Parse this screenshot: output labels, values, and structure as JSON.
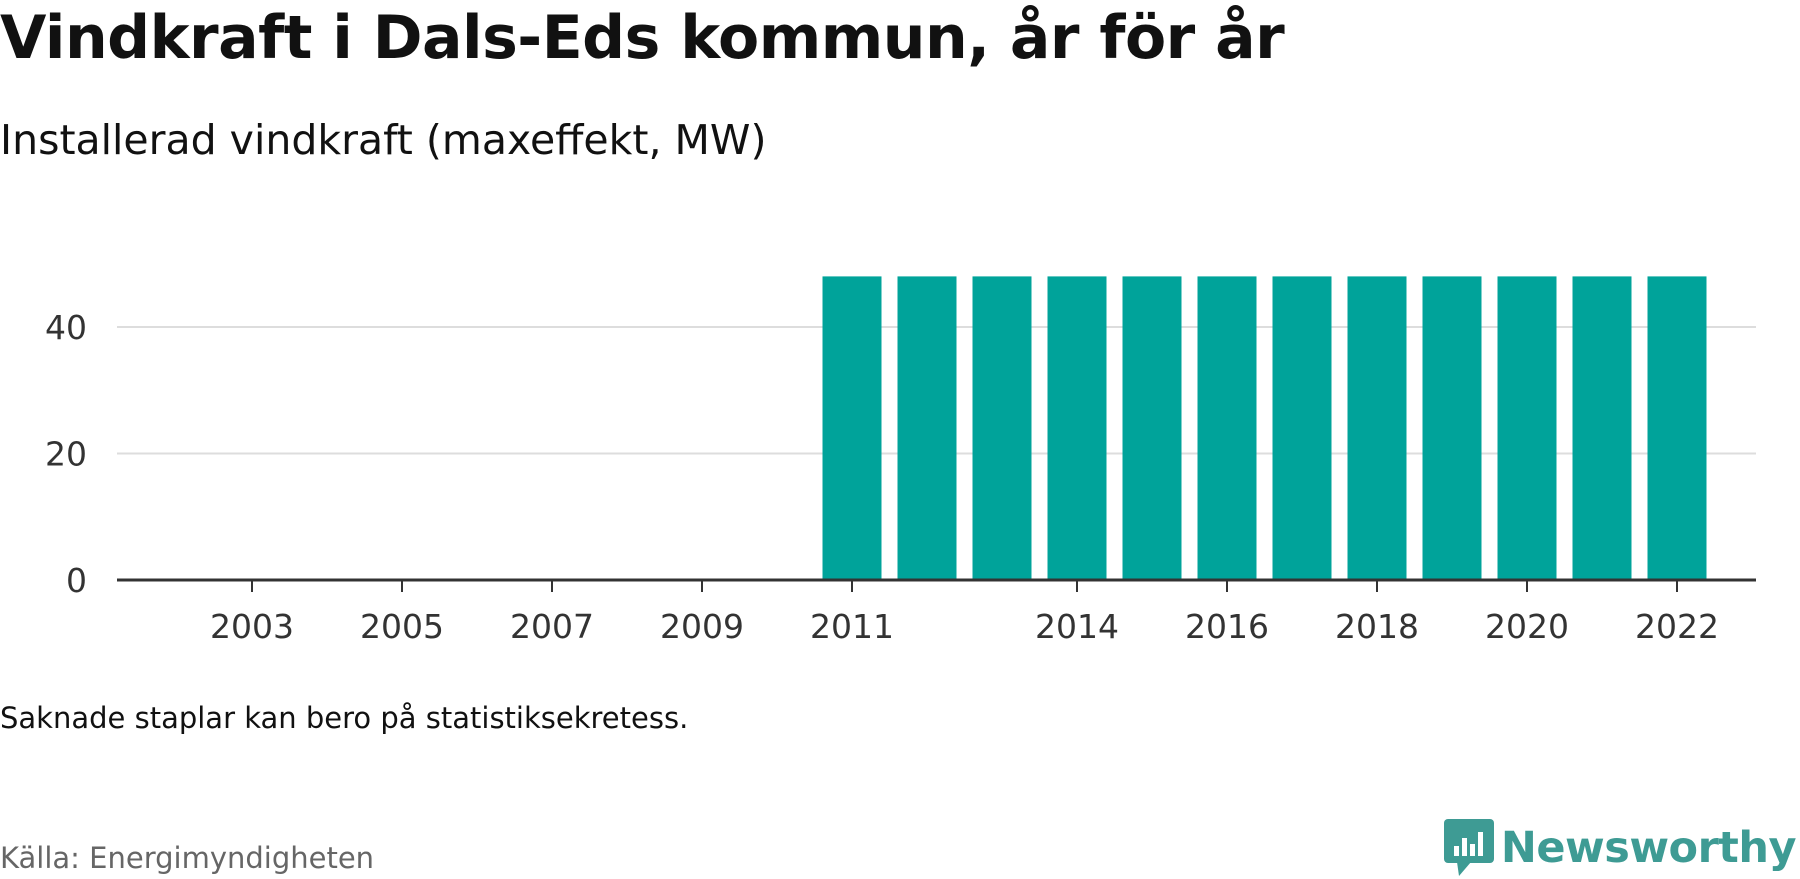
{
  "title": "Vindkraft i Dals-Eds kommun, år för år",
  "subtitle": "Installerad vindkraft (maxeffekt, MW)",
  "note": "Saknade staplar kan bero på statistiksekretess.",
  "source": "Källa: Energimyndigheten",
  "brand": "Newsworthy",
  "colors": {
    "bar": "#00a39a",
    "brand": "#3e9b94",
    "grid": "#dddddd",
    "axis": "#333333"
  },
  "chart_data": {
    "type": "bar",
    "categories": [
      "2002",
      "2003",
      "2004",
      "2005",
      "2006",
      "2007",
      "2008",
      "2009",
      "2010",
      "2011",
      "2012",
      "2013",
      "2014",
      "2015",
      "2016",
      "2017",
      "2018",
      "2019",
      "2020",
      "2021",
      "2022"
    ],
    "values": [
      null,
      null,
      null,
      null,
      null,
      null,
      null,
      null,
      null,
      48,
      48,
      48,
      48,
      48,
      48,
      48,
      48,
      48,
      48,
      48,
      48
    ],
    "x_tick_labels": [
      "2003",
      "2005",
      "2007",
      "2009",
      "2011",
      "2014",
      "2016",
      "2018",
      "2020",
      "2022"
    ],
    "y_ticks": [
      0,
      20,
      40
    ],
    "ylim": [
      0,
      48
    ],
    "xlabel": "",
    "ylabel": "",
    "grid": true,
    "legend": "none"
  }
}
